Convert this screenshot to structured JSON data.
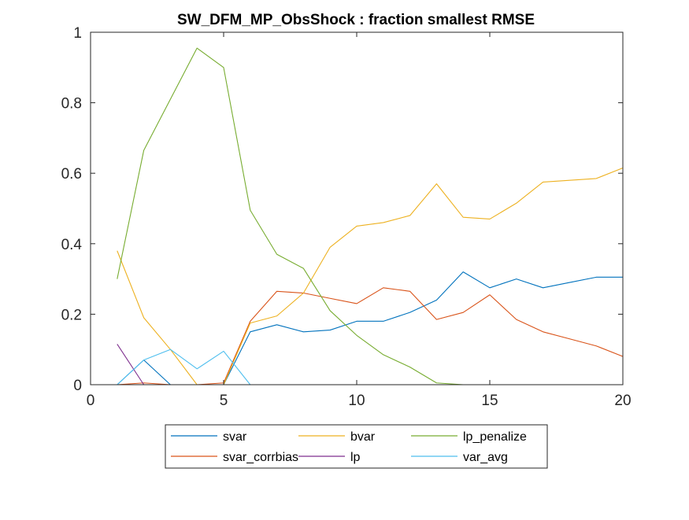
{
  "chart_data": {
    "type": "line",
    "title": "SW_DFM_MP_ObsShock : fraction smallest RMSE",
    "xlabel": "",
    "ylabel": "",
    "xlim": [
      0,
      20
    ],
    "ylim": [
      0,
      1
    ],
    "xticks": [
      "0",
      "5",
      "10",
      "15",
      "20"
    ],
    "yticks": [
      "0",
      "0.2",
      "0.4",
      "0.6",
      "0.8",
      "1"
    ],
    "grid": false,
    "legend_placement": "bottom",
    "x": [
      1,
      2,
      3,
      4,
      5,
      6,
      7,
      8,
      9,
      10,
      11,
      12,
      13,
      14,
      15,
      16,
      17,
      18,
      19,
      20
    ],
    "series": [
      {
        "name": "svar",
        "color": "#0072BD",
        "values": [
          0,
          0.07,
          0,
          0,
          0,
          0.15,
          0.17,
          0.15,
          0.155,
          0.18,
          0.18,
          0.205,
          0.24,
          0.32,
          0.275,
          0.3,
          0.275,
          0.29,
          0.305,
          0.305
        ]
      },
      {
        "name": "svar_corrbias",
        "color": "#D95319",
        "values": [
          0,
          0.005,
          0,
          0,
          0.005,
          0.18,
          0.265,
          0.26,
          0.245,
          0.23,
          0.275,
          0.265,
          0.185,
          0.205,
          0.255,
          0.185,
          0.15,
          0.13,
          0.11,
          0.08
        ]
      },
      {
        "name": "bvar",
        "color": "#EDB120",
        "values": [
          0.38,
          0.19,
          0.1,
          0,
          0,
          0.175,
          0.195,
          0.26,
          0.39,
          0.45,
          0.46,
          0.48,
          0.57,
          0.475,
          0.47,
          0.515,
          0.575,
          0.58,
          0.585,
          0.615
        ]
      },
      {
        "name": "lp",
        "color": "#7E2F8E",
        "values": [
          0.115,
          0,
          0,
          0,
          0,
          0,
          0,
          0,
          0,
          0,
          0,
          0,
          0,
          0,
          0,
          0,
          0,
          0,
          0,
          0
        ]
      },
      {
        "name": "lp_penalize",
        "color": "#77AC30",
        "values": [
          0.3,
          0.665,
          0.81,
          0.955,
          0.9,
          0.495,
          0.37,
          0.33,
          0.21,
          0.14,
          0.085,
          0.05,
          0.005,
          0,
          0,
          0,
          0,
          0,
          0,
          0
        ]
      },
      {
        "name": "var_avg",
        "color": "#4DBEEE",
        "values": [
          0,
          0.07,
          0.1,
          0.045,
          0.095,
          0,
          0,
          0,
          0,
          0,
          0,
          0,
          0,
          0,
          0,
          0,
          0,
          0,
          0,
          0
        ]
      }
    ],
    "legend_order": [
      "svar",
      "bvar",
      "lp_penalize",
      "svar_corrbias",
      "lp",
      "var_avg"
    ]
  }
}
